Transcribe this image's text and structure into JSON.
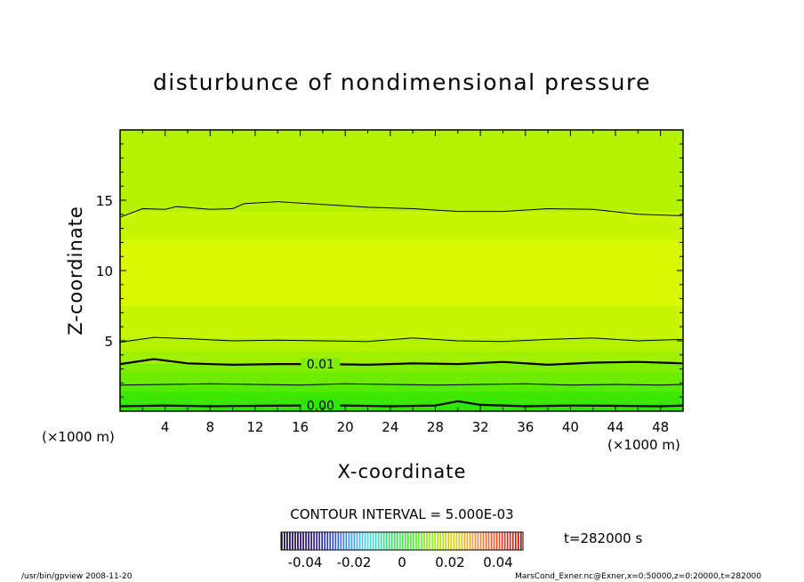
{
  "chart_data": {
    "type": "heatmap",
    "title": "disturbunce of nondimensional pressure",
    "xlabel": "X-coordinate",
    "ylabel": "Z-coordinate",
    "x_unit_left": "(×1000 m)",
    "x_unit_right": "(×1000 m)",
    "xlim": [
      0,
      50
    ],
    "ylim": [
      0,
      20
    ],
    "xticks": [
      4,
      8,
      12,
      16,
      20,
      24,
      28,
      32,
      36,
      40,
      44,
      48
    ],
    "yticks": [
      5,
      10,
      15
    ],
    "bands": [
      {
        "z0": 0.0,
        "z1": 0.6,
        "value": -0.002,
        "color": "#2ee600"
      },
      {
        "z0": 0.6,
        "z1": 1.4,
        "value": 0.002,
        "color": "#3ce800"
      },
      {
        "z0": 1.4,
        "z1": 2.0,
        "value": 0.004,
        "color": "#55ea00"
      },
      {
        "z0": 2.0,
        "z1": 2.8,
        "value": 0.006,
        "color": "#6eec00"
      },
      {
        "z0": 2.8,
        "z1": 3.4,
        "value": 0.008,
        "color": "#80ee00"
      },
      {
        "z0": 3.4,
        "z1": 4.3,
        "value": 0.011,
        "color": "#a0f000"
      },
      {
        "z0": 4.3,
        "z1": 5.2,
        "value": 0.013,
        "color": "#b4f200"
      },
      {
        "z0": 5.2,
        "z1": 7.5,
        "value": 0.016,
        "color": "#c8f500"
      },
      {
        "z0": 7.5,
        "z1": 12.2,
        "value": 0.018,
        "color": "#d8f900"
      },
      {
        "z0": 12.2,
        "z1": 14.2,
        "value": 0.016,
        "color": "#c8f500"
      },
      {
        "z0": 14.2,
        "z1": 20.0,
        "value": 0.014,
        "color": "#b4f200"
      }
    ],
    "contours": [
      {
        "level": 0.0,
        "label": "0.00",
        "label_x": 17.8,
        "width": 2.2,
        "points": [
          [
            0,
            0.35
          ],
          [
            4,
            0.4
          ],
          [
            8,
            0.35
          ],
          [
            12,
            0.38
          ],
          [
            16,
            0.4
          ],
          [
            20,
            0.4
          ],
          [
            24,
            0.35
          ],
          [
            28,
            0.4
          ],
          [
            30,
            0.7
          ],
          [
            32,
            0.45
          ],
          [
            36,
            0.35
          ],
          [
            40,
            0.4
          ],
          [
            44,
            0.38
          ],
          [
            48,
            0.35
          ],
          [
            50,
            0.4
          ]
        ]
      },
      {
        "level": 0.005,
        "label": "",
        "width": 1.0,
        "points": [
          [
            0,
            1.85
          ],
          [
            4,
            1.9
          ],
          [
            8,
            1.95
          ],
          [
            12,
            1.9
          ],
          [
            16,
            1.85
          ],
          [
            20,
            1.95
          ],
          [
            24,
            1.9
          ],
          [
            28,
            1.85
          ],
          [
            32,
            1.9
          ],
          [
            36,
            1.95
          ],
          [
            40,
            1.85
          ],
          [
            44,
            1.9
          ],
          [
            48,
            1.85
          ],
          [
            50,
            1.9
          ]
        ]
      },
      {
        "level": 0.01,
        "label": "0.01",
        "label_x": 17.8,
        "width": 2.2,
        "points": [
          [
            0,
            3.35
          ],
          [
            3,
            3.7
          ],
          [
            6,
            3.4
          ],
          [
            10,
            3.3
          ],
          [
            14,
            3.35
          ],
          [
            18,
            3.35
          ],
          [
            22,
            3.3
          ],
          [
            26,
            3.4
          ],
          [
            30,
            3.35
          ],
          [
            34,
            3.5
          ],
          [
            38,
            3.3
          ],
          [
            42,
            3.45
          ],
          [
            46,
            3.5
          ],
          [
            50,
            3.4
          ]
        ]
      },
      {
        "level": 0.015,
        "label": "",
        "width": 1.0,
        "points": [
          [
            0,
            4.9
          ],
          [
            3,
            5.25
          ],
          [
            6,
            5.15
          ],
          [
            10,
            5.0
          ],
          [
            14,
            5.05
          ],
          [
            18,
            5.0
          ],
          [
            22,
            4.95
          ],
          [
            26,
            5.2
          ],
          [
            30,
            5.0
          ],
          [
            34,
            4.95
          ],
          [
            38,
            5.1
          ],
          [
            42,
            5.2
          ],
          [
            46,
            5.0
          ],
          [
            50,
            5.1
          ]
        ]
      },
      {
        "level": 0.015,
        "label": "",
        "width": 1.0,
        "points": [
          [
            0,
            13.8
          ],
          [
            2,
            14.4
          ],
          [
            4,
            14.35
          ],
          [
            5,
            14.55
          ],
          [
            8,
            14.35
          ],
          [
            10,
            14.4
          ],
          [
            11,
            14.75
          ],
          [
            14,
            14.9
          ],
          [
            18,
            14.7
          ],
          [
            22,
            14.5
          ],
          [
            26,
            14.4
          ],
          [
            30,
            14.2
          ],
          [
            34,
            14.2
          ],
          [
            38,
            14.4
          ],
          [
            42,
            14.35
          ],
          [
            46,
            14.0
          ],
          [
            48,
            13.95
          ],
          [
            50,
            13.9
          ]
        ]
      }
    ],
    "contour_interval_text": "CONTOUR INTERVAL = 5.000E-03",
    "time_text": "t=282000 s",
    "colorbar": {
      "ticks": [
        "-0.04",
        "-0.02",
        "0",
        "0.02",
        "0.04"
      ],
      "stops": [
        "#0a0020",
        "#200070",
        "#3030c8",
        "#3c8cff",
        "#40e0e8",
        "#30e070",
        "#40ff20",
        "#a0f000",
        "#e0d000",
        "#ff9040",
        "#ff4020",
        "#b01010"
      ]
    },
    "footer_left": "/usr/bin/gpview   2008-11-20",
    "footer_right": "MarsCond_Exner.nc@Exner,x=0:50000,z=0:20000,t=282000"
  }
}
